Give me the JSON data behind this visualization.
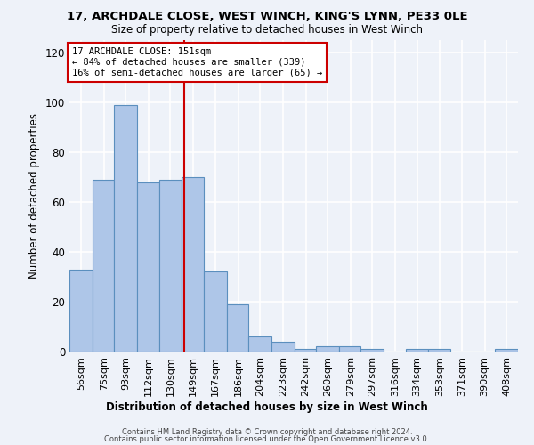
{
  "title_line1": "17, ARCHDALE CLOSE, WEST WINCH, KING'S LYNN, PE33 0LE",
  "title_line2": "Size of property relative to detached houses in West Winch",
  "xlabel": "Distribution of detached houses by size in West Winch",
  "ylabel": "Number of detached properties",
  "bar_edges": [
    56,
    75,
    93,
    112,
    130,
    149,
    167,
    186,
    204,
    223,
    242,
    260,
    279,
    297,
    316,
    334,
    353,
    371,
    390,
    408,
    427
  ],
  "bar_heights": [
    33,
    69,
    99,
    68,
    69,
    70,
    32,
    19,
    6,
    4,
    1,
    2,
    2,
    1,
    0,
    1,
    1,
    0,
    0,
    1,
    0
  ],
  "bar_color": "#aec6e8",
  "bar_edge_color": "#5b8fbe",
  "bar_linewidth": 0.8,
  "vline_x": 151,
  "vline_color": "#cc0000",
  "annotation_text": "17 ARCHDALE CLOSE: 151sqm\n← 84% of detached houses are smaller (339)\n16% of semi-detached houses are larger (65) →",
  "annotation_box_color": "#ffffff",
  "annotation_box_edgecolor": "#cc0000",
  "ylim": [
    0,
    125
  ],
  "yticks": [
    0,
    20,
    40,
    60,
    80,
    100,
    120
  ],
  "background_color": "#eef2f9",
  "grid_color": "#ffffff",
  "footer_line1": "Contains HM Land Registry data © Crown copyright and database right 2024.",
  "footer_line2": "Contains public sector information licensed under the Open Government Licence v3.0."
}
